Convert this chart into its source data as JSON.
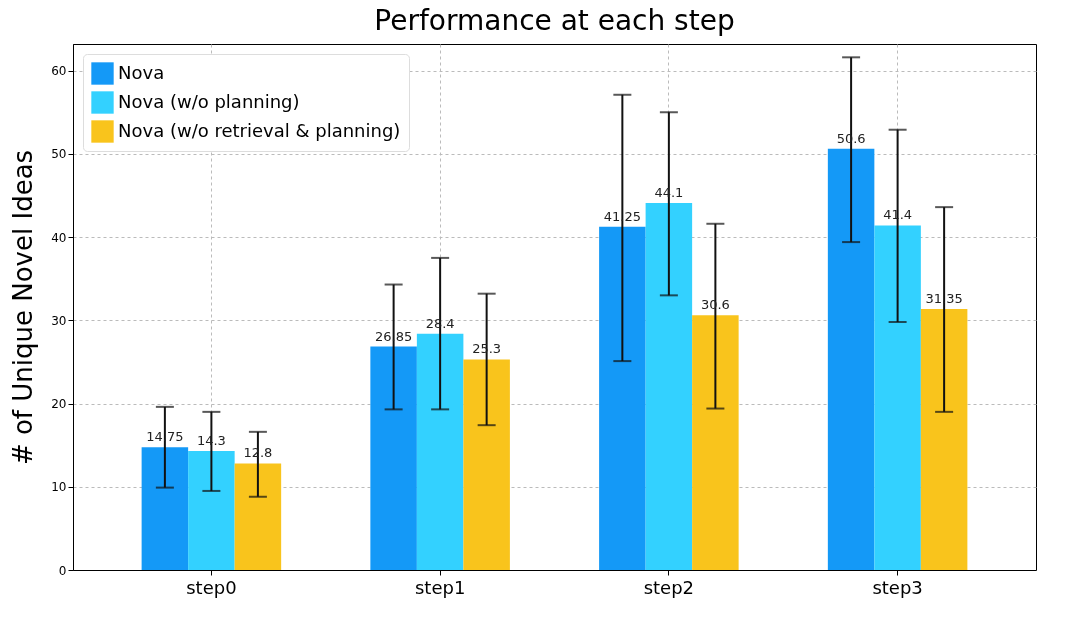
{
  "chart_data": {
    "type": "bar",
    "title": "Performance at each step",
    "ylabel": "# of Unique Novel Ideas",
    "categories": [
      "step0",
      "step1",
      "step2",
      "step3"
    ],
    "series": [
      {
        "name": "Nova",
        "color": "#1499f7",
        "values": [
          14.75,
          26.85,
          41.25,
          50.6
        ],
        "errors": [
          [
            9.9,
            19.6
          ],
          [
            19.3,
            34.3
          ],
          [
            25.1,
            57.1
          ],
          [
            39.4,
            61.6
          ]
        ]
      },
      {
        "name": "Nova (w/o planning)",
        "color": "#33d1ff",
        "values": [
          14.3,
          28.4,
          44.1,
          41.4
        ],
        "errors": [
          [
            9.5,
            19.0
          ],
          [
            19.3,
            37.5
          ],
          [
            33.0,
            55.0
          ],
          [
            29.8,
            52.9
          ]
        ]
      },
      {
        "name": "Nova (w/o retrieval & planning)",
        "color": "#f9c41c",
        "values": [
          12.8,
          25.3,
          30.6,
          31.35
        ],
        "errors": [
          [
            8.8,
            16.6
          ],
          [
            17.4,
            33.2
          ],
          [
            19.4,
            41.6
          ],
          [
            19.0,
            43.6
          ]
        ]
      }
    ],
    "ylim": [
      0,
      63.2
    ],
    "yticks": [
      0,
      10,
      20,
      30,
      40,
      50,
      60
    ],
    "grid": true,
    "legend": "top left",
    "data_labels": true
  }
}
